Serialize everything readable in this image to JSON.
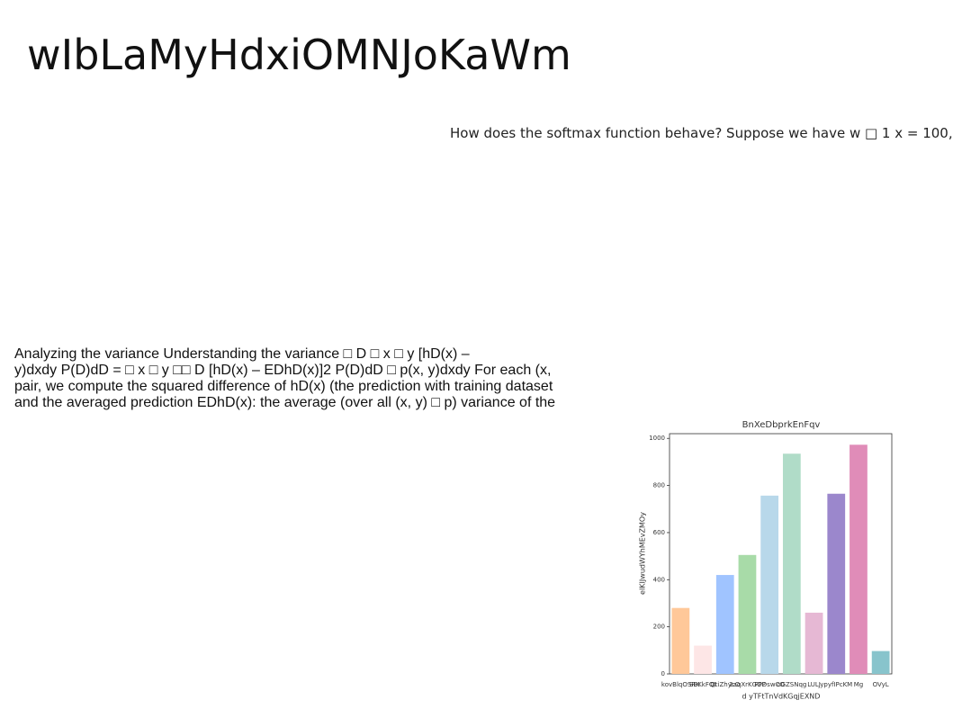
{
  "heading": "wIbLaMyHdxiOMNJoKaWm",
  "side_text": "How does the softmax function behave? Suppose we have w □ 1 x = 100,",
  "paragraph_lines": [
    "Analyzing the variance Understanding the variance □ D □ x □ y [hD(x) –",
    "y)dxdy P(D)dD = □ x □ y □□ D [hD(x) – EDhD(x)]2 P(D)dD □ p(x, y)dxdy For each (x,",
    "pair, we compute the squared difference of hD(x) (the prediction with training dataset",
    "and the averaged prediction EDhD(x): the average (over all (x, y) □ p) variance of the"
  ],
  "chart": {
    "type": "bar",
    "title": "BnXeDbprkEnFqv",
    "x_label": "d yTFtTnVdKGqjEXND",
    "y_label": "eIKIJwudWYhMEvZMOy",
    "categories": [
      "kovBlqOSRK",
      "SBKkFQt",
      "QtiZhycO",
      "2aqXrKGOP",
      "PPDswCO",
      "oGZSNqg",
      "LULJ",
      "ypyfIPcKM",
      "Mg",
      "OVyL"
    ],
    "values": [
      280,
      120,
      420,
      505,
      757,
      935,
      260,
      765,
      973,
      97
    ],
    "colors": [
      "#ffc899",
      "#fde6e6",
      "#a0c4ff",
      "#a8dba8",
      "#b8d8ea",
      "#b0dcc8",
      "#e6b8d4",
      "#9b87cc",
      "#e08cb8",
      "#88c4cc"
    ],
    "ylim": [
      0,
      1020
    ],
    "yticks": [
      0,
      200,
      400,
      600,
      800,
      1000
    ]
  }
}
